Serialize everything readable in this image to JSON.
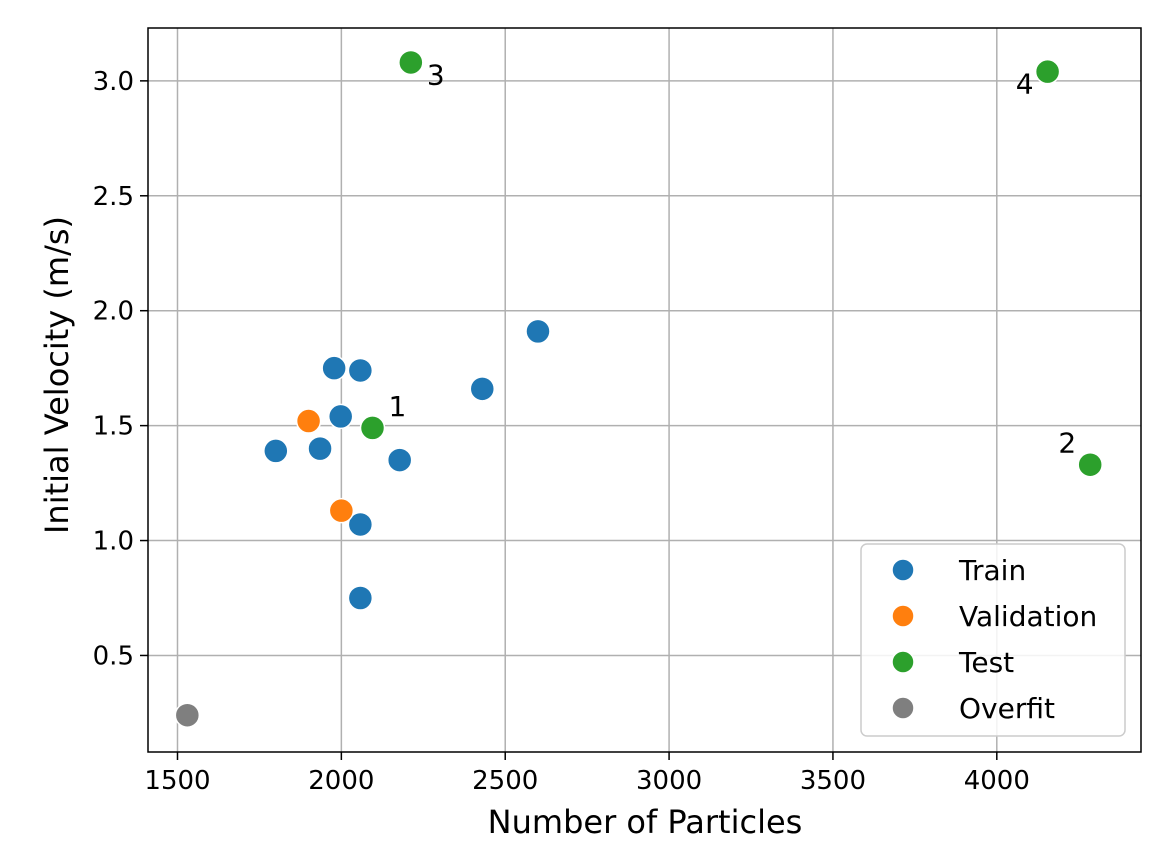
{
  "chart_data": {
    "type": "scatter",
    "xlabel": "Number of Particles",
    "ylabel": "Initial Velocity (m/s)",
    "xlim": [
      1410,
      4440
    ],
    "ylim": [
      0.08,
      3.23
    ],
    "xticks": [
      1500,
      2000,
      2500,
      3000,
      3500,
      4000
    ],
    "xtick_labels": [
      "1500",
      "2000",
      "2500",
      "3000",
      "3500",
      "4000"
    ],
    "yticks": [
      0.5,
      1.0,
      1.5,
      2.0,
      2.5,
      3.0
    ],
    "ytick_labels": [
      "0.5",
      "1.0",
      "1.5",
      "2.0",
      "2.5",
      "3.0"
    ],
    "grid": true,
    "legend_position": "lower-right",
    "series": [
      {
        "name": "Train",
        "color": "#1f77b4",
        "points": [
          {
            "x": 1800,
            "y": 1.39
          },
          {
            "x": 1935,
            "y": 1.4
          },
          {
            "x": 1978,
            "y": 1.75
          },
          {
            "x": 1998,
            "y": 1.54
          },
          {
            "x": 2058,
            "y": 1.74
          },
          {
            "x": 2058,
            "y": 1.07
          },
          {
            "x": 2058,
            "y": 0.75
          },
          {
            "x": 2178,
            "y": 1.35
          },
          {
            "x": 2430,
            "y": 1.66
          },
          {
            "x": 2600,
            "y": 1.91
          }
        ]
      },
      {
        "name": "Validation",
        "color": "#ff7f0e",
        "points": [
          {
            "x": 1900,
            "y": 1.52
          },
          {
            "x": 2000,
            "y": 1.13
          }
        ]
      },
      {
        "name": "Test",
        "color": "#2ca02c",
        "points": [
          {
            "x": 2095,
            "y": 1.49,
            "label": "1",
            "label_pos": "above-right"
          },
          {
            "x": 4285,
            "y": 1.33,
            "label": "2",
            "label_pos": "above-left"
          },
          {
            "x": 2212,
            "y": 3.08,
            "label": "3",
            "label_pos": "below-right"
          },
          {
            "x": 4155,
            "y": 3.04,
            "label": "4",
            "label_pos": "below-left"
          }
        ]
      },
      {
        "name": "Overfit",
        "color": "#7f7f7f",
        "points": [
          {
            "x": 1530,
            "y": 0.24
          }
        ]
      }
    ]
  }
}
